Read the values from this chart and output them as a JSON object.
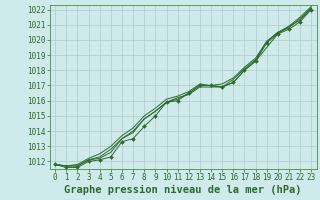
{
  "x": [
    0,
    1,
    2,
    3,
    4,
    5,
    6,
    7,
    8,
    9,
    10,
    11,
    12,
    13,
    14,
    15,
    16,
    17,
    18,
    19,
    20,
    21,
    22,
    23
  ],
  "line1": [
    1011.8,
    1011.6,
    1011.6,
    1012.0,
    1012.1,
    1012.3,
    1013.3,
    1013.5,
    1014.3,
    1015.0,
    1015.9,
    1016.0,
    1016.5,
    1017.0,
    1017.0,
    1016.9,
    1017.2,
    1018.0,
    1018.6,
    1019.8,
    1020.4,
    1020.7,
    1021.2,
    1022.0
  ],
  "line2": [
    1011.8,
    1011.7,
    1011.7,
    1012.1,
    1012.2,
    1012.6,
    1013.5,
    1013.9,
    1014.8,
    1015.3,
    1015.9,
    1016.2,
    1016.4,
    1016.9,
    1016.9,
    1016.9,
    1017.2,
    1018.0,
    1018.6,
    1019.5,
    1020.4,
    1020.9,
    1021.3,
    1022.1
  ],
  "line3": [
    1011.8,
    1011.7,
    1011.7,
    1012.1,
    1012.3,
    1012.8,
    1013.5,
    1014.0,
    1014.8,
    1015.3,
    1015.9,
    1016.1,
    1016.5,
    1017.0,
    1017.0,
    1016.9,
    1017.4,
    1018.1,
    1018.7,
    1019.9,
    1020.5,
    1020.8,
    1021.4,
    1022.1
  ],
  "line4": [
    1011.8,
    1011.7,
    1011.8,
    1012.2,
    1012.5,
    1013.0,
    1013.7,
    1014.2,
    1015.0,
    1015.5,
    1016.1,
    1016.3,
    1016.6,
    1017.1,
    1017.0,
    1017.1,
    1017.5,
    1018.2,
    1018.8,
    1019.9,
    1020.5,
    1020.9,
    1021.5,
    1022.2
  ],
  "ylim": [
    1011.5,
    1022.3
  ],
  "yticks": [
    1012,
    1013,
    1014,
    1015,
    1016,
    1017,
    1018,
    1019,
    1020,
    1021,
    1022
  ],
  "xlim": [
    -0.5,
    23.5
  ],
  "xticks": [
    0,
    1,
    2,
    3,
    4,
    5,
    6,
    7,
    8,
    9,
    10,
    11,
    12,
    13,
    14,
    15,
    16,
    17,
    18,
    19,
    20,
    21,
    22,
    23
  ],
  "xlabel": "Graphe pression niveau de la mer (hPa)",
  "line_color": "#2d6a2d",
  "marker": "D",
  "marker_size": 2.0,
  "bg_color": "#ceeaea",
  "grid_color": "#b0c8c8",
  "spine_color": "#4a8a4a",
  "tick_color": "#2d6a2d",
  "xlabel_color": "#2d6a2d",
  "xlabel_fontsize": 7.5,
  "tick_fontsize": 5.5
}
